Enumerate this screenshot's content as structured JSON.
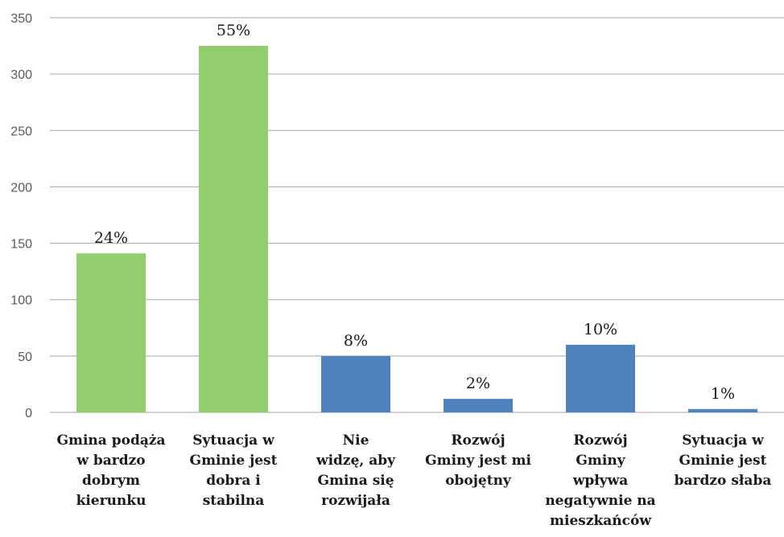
{
  "chart_data": {
    "type": "bar",
    "title": "",
    "xlabel": "",
    "ylabel": "",
    "ylim": [
      0,
      350
    ],
    "yticks": [
      0,
      50,
      100,
      150,
      200,
      250,
      300,
      350
    ],
    "grid": true,
    "categories": [
      "Gmina podąża w bardzo dobrym kierunku",
      "Sytuacja w Gminie jest dobra i stabilna",
      "Nie widzę, aby Gmina się rozwijała",
      "Rozwój Gminy jest mi obojętny",
      "Rozwój Gminy wpływa negatywnie na mieszkańców",
      "Sytuacja w Gminie jest bardzo słaba"
    ],
    "category_lines": [
      [
        "Gmina podąża",
        "w bardzo",
        "dobrym",
        "kierunku"
      ],
      [
        "Sytuacja w",
        "Gminie jest",
        "dobra i",
        "stabilna"
      ],
      [
        "Nie",
        "widzę, aby",
        "Gmina się",
        "rozwijała"
      ],
      [
        "Rozwój",
        "Gminy jest mi",
        "obojętny"
      ],
      [
        "Rozwój",
        "Gminy",
        "wpływa",
        "negatywnie na",
        "mieszkańców"
      ],
      [
        "Sytuacja w",
        "Gminie jest",
        "bardzo słaba"
      ]
    ],
    "values": [
      141,
      325,
      50,
      12,
      60,
      3
    ],
    "data_labels": [
      "24%",
      "55%",
      "8%",
      "2%",
      "10%",
      "1%"
    ],
    "bar_colors": [
      "#92cd6e",
      "#92cd6e",
      "#4f81bd",
      "#4f81bd",
      "#4f81bd",
      "#4f81bd"
    ],
    "colors": {
      "gridline": "#a6a6a6",
      "axis": "#a6a6a6"
    }
  }
}
